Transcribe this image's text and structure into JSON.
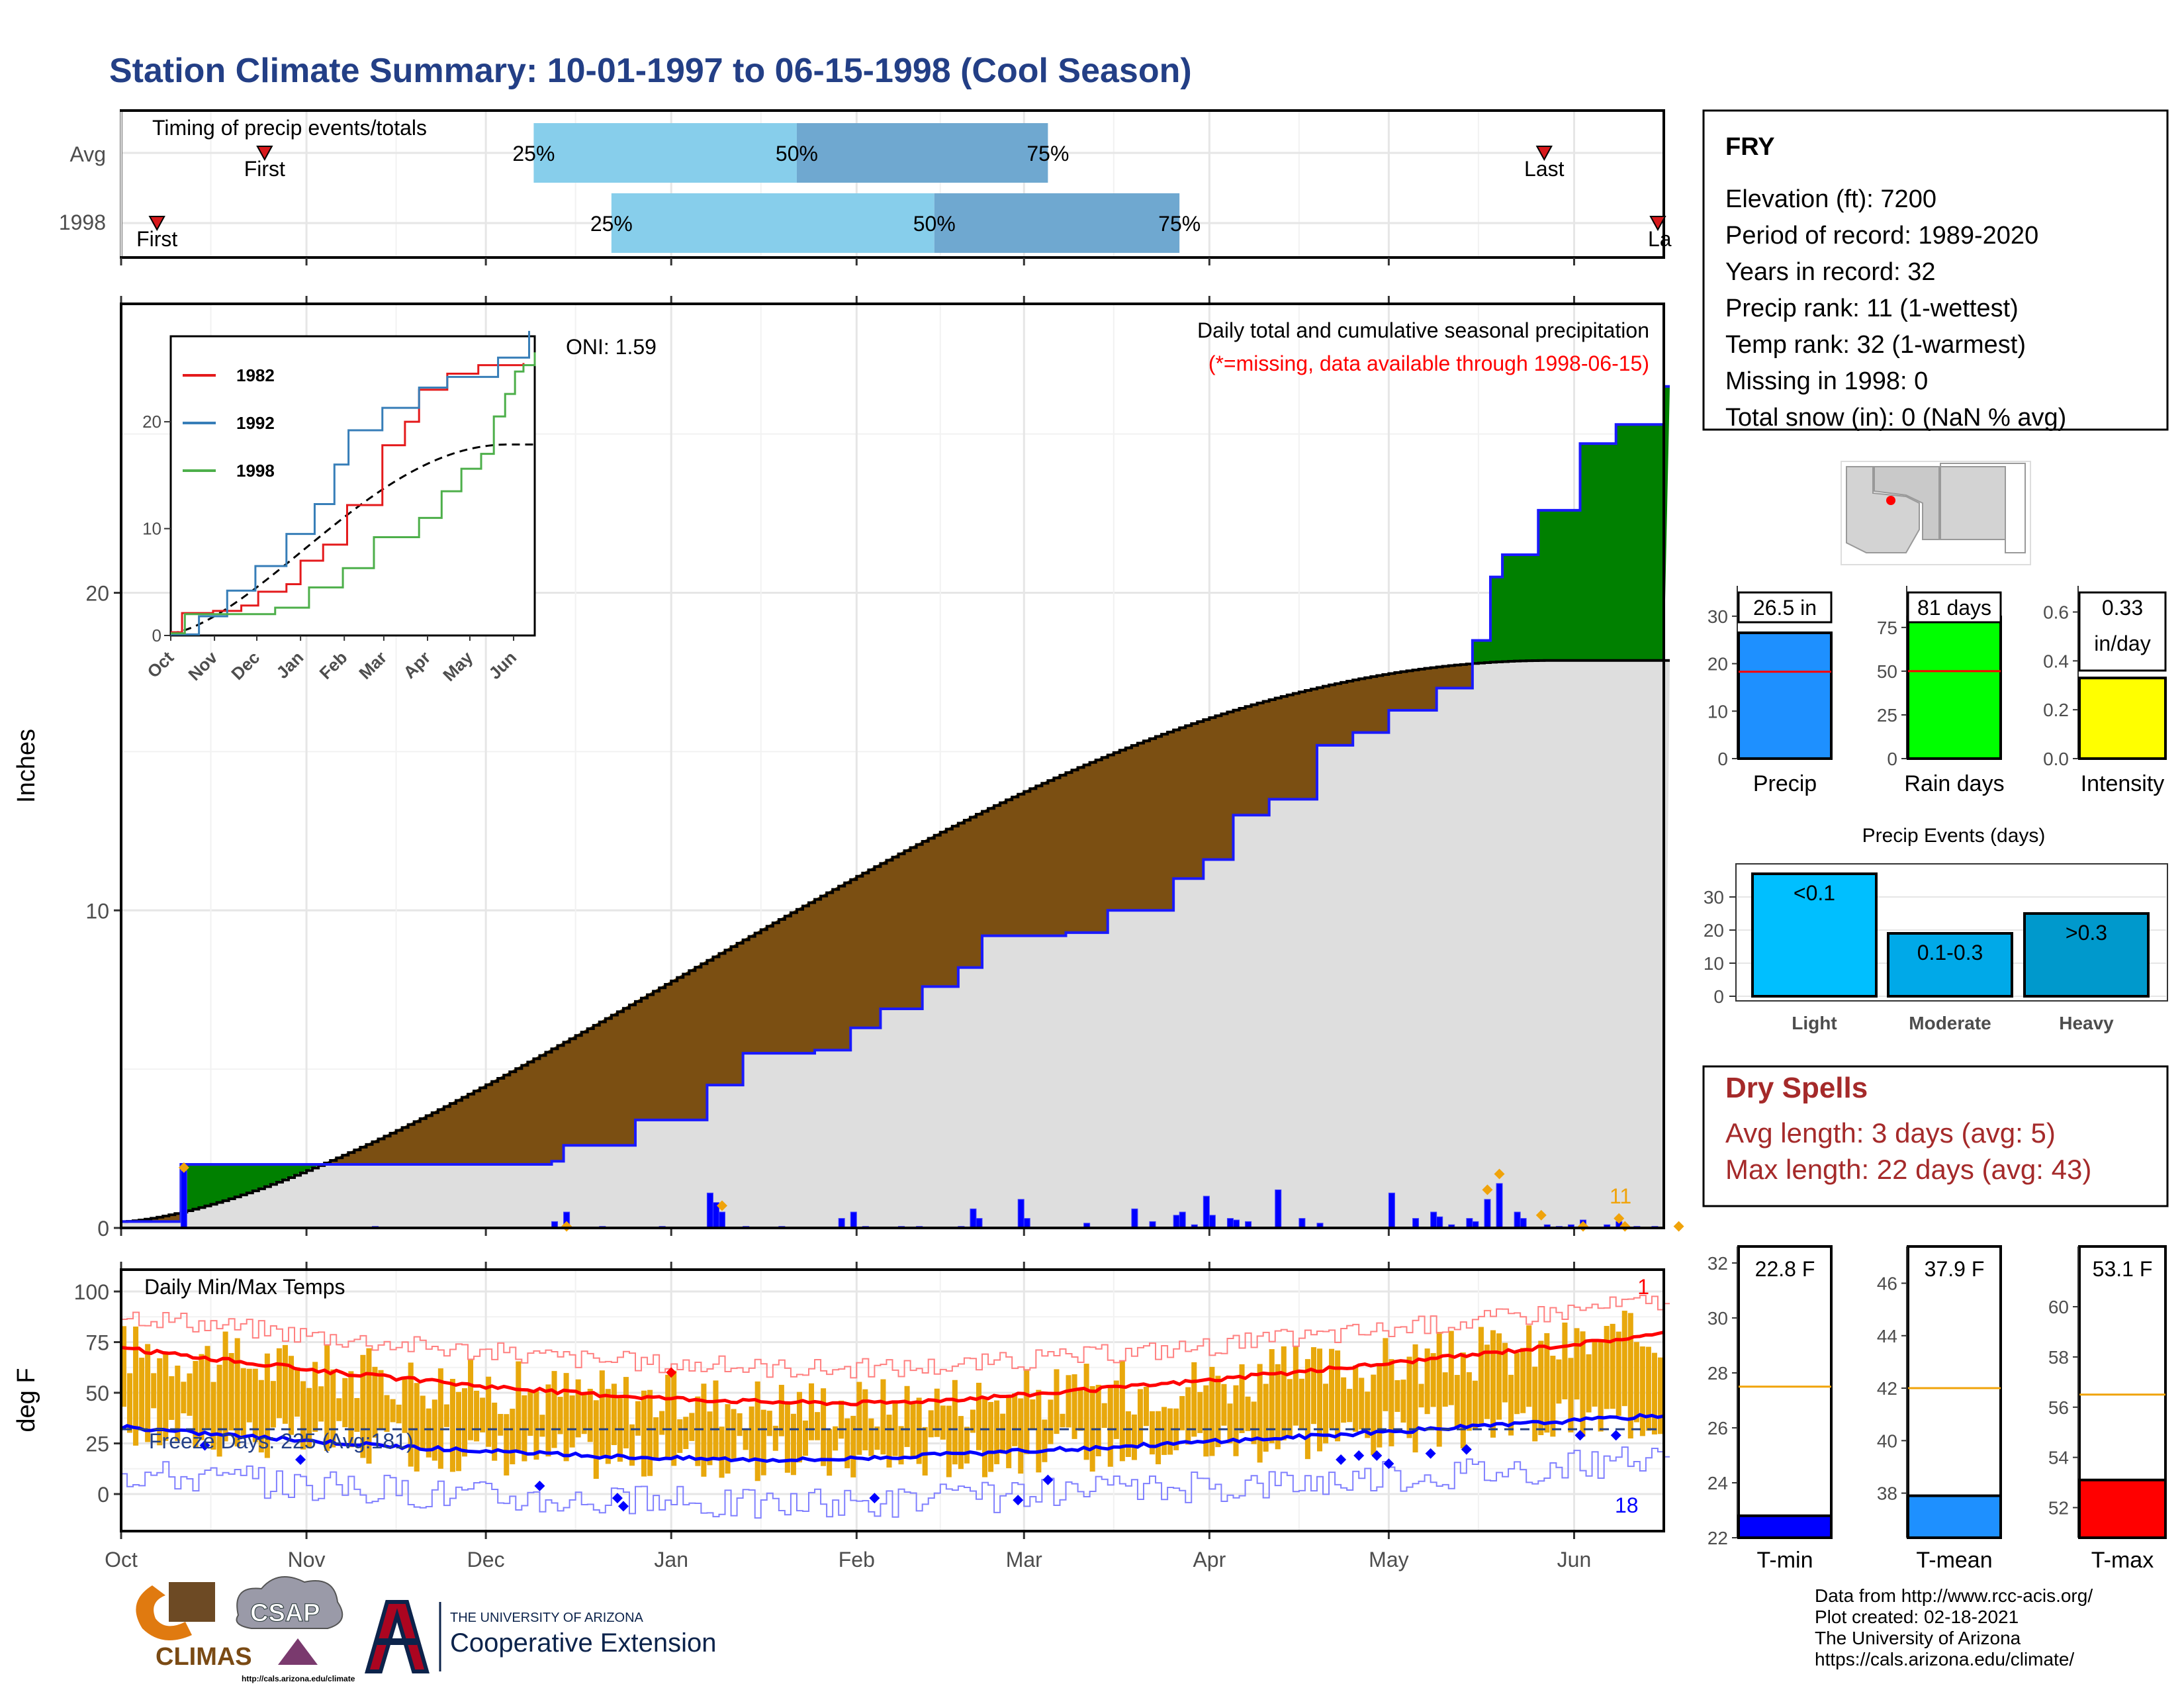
{
  "title": "Station Climate Summary: 10-01-1997 to 06-15-1998 (Cool Season)",
  "colors": {
    "title": "#233f86",
    "green": "#008000",
    "brown": "#7b4f12",
    "bluebar": "#0000ff",
    "blueline": "#1a1aff",
    "orange": "#f0a30a",
    "gold": "#e8a80c",
    "lightblue": "#87ceeb",
    "midblue": "#6fa8d0",
    "red": "#ff0000",
    "grey": "#dedede"
  },
  "months": [
    "Oct",
    "Nov",
    "Dec",
    "Jan",
    "Feb",
    "Mar",
    "Apr",
    "May",
    "Jun"
  ],
  "timing": {
    "title": "Timing of precip events/totals",
    "rows": [
      {
        "label": "Avg",
        "first": "First",
        "last": "Last",
        "first_date": "1997-10-25",
        "last_date": "1998-05-27",
        "q25_label": "25%",
        "q50_label": "50%",
        "q75_label": "75%",
        "q25_date": "1997-12-09",
        "q50_date": "1998-01-22",
        "q75_date": "1998-03-05"
      },
      {
        "label": "1998",
        "first": "First",
        "last": "Last",
        "first_date": "1997-10-07",
        "last_date": "1998-06-15",
        "q25_date": "1997-12-22",
        "q50_date": "1998-02-14",
        "q75_date": "1998-03-27",
        "q25_label": "25%",
        "q50_label": "50%",
        "q75_label": "75%"
      }
    ]
  },
  "main": {
    "ylabel": "Inches",
    "chart_title": "Daily total and cumulative seasonal precipitation",
    "chart_note": "(*=missing, data available through 1998-06-15)",
    "oni": "ONI: 1.59",
    "count_label": "11",
    "yticks": [
      0,
      10,
      20
    ]
  },
  "inset": {
    "yticks": [
      0,
      10,
      20
    ],
    "months": [
      "Oct",
      "Nov",
      "Dec",
      "Jan",
      "Feb",
      "Mar",
      "Apr",
      "May",
      "Jun"
    ],
    "legend": [
      {
        "name": "1982",
        "color": "#e41a1c"
      },
      {
        "name": "1992",
        "color": "#377eb8"
      },
      {
        "name": "1998",
        "color": "#4daf4a"
      }
    ]
  },
  "temps": {
    "title": "Daily Min/Max Temps",
    "ylabel": "deg F",
    "freeze": "Freeze Days: 225 (Avg:181)",
    "top_count": "1",
    "bottom_count": "18",
    "yticks": [
      0,
      25,
      50,
      75,
      100
    ]
  },
  "info": {
    "station": "FRY",
    "lines": [
      "Elevation (ft): 7200",
      "Period of record: 1989-2020",
      "Years in record: 32",
      "Precip rank: 11 (1-wettest)",
      "Temp rank: 32 (1-warmest)",
      "Missing in 1998: 0",
      "Total snow (in): 0 (NaN % avg)"
    ]
  },
  "bars3": [
    {
      "name": "Precip",
      "value": 26.5,
      "avg": 18.3,
      "label": "26.5 in",
      "color": "#1e90ff",
      "ymax": 35,
      "ticks": [
        0,
        10,
        20,
        30
      ]
    },
    {
      "name": "Rain days",
      "value": 81,
      "avg": 50,
      "label": "81 days",
      "color": "#00ff00",
      "ymax": 95,
      "ticks": [
        0,
        25,
        50,
        75
      ]
    },
    {
      "name": "Intensity",
      "value": 0.33,
      "avg": 0.37,
      "label": "0.33",
      "label2": "in/day",
      "color": "#ffff00",
      "ymax": 0.68,
      "ticks": [
        "0.0",
        "0.2",
        "0.4",
        "0.6"
      ]
    }
  ],
  "events": {
    "title": "Precip Events (days)",
    "ticks": [
      0,
      10,
      20,
      30
    ],
    "bars": [
      {
        "name": "Light",
        "label": "<0.1",
        "value": 37,
        "color": "#00bfff"
      },
      {
        "name": "Moderate",
        "label": "0.1-0.3",
        "value": 19,
        "color": "#00a9e8"
      },
      {
        "name": "Heavy",
        "label": ">0.3",
        "value": 25,
        "color": "#0099cc"
      }
    ]
  },
  "dry": {
    "title": "Dry Spells",
    "avg": "Avg length: 3 days (avg: 5)",
    "max": "Max length: 22 days (avg: 43)"
  },
  "tbars": [
    {
      "name": "T-min",
      "value": 22.8,
      "avg": 27.5,
      "label": "22.8 F",
      "color": "#0000ff",
      "ymin": 22,
      "ymax": 32.6,
      "ticks": [
        22,
        24,
        26,
        28,
        30,
        32
      ]
    },
    {
      "name": "T-mean",
      "value": 37.9,
      "avg": 42,
      "label": "37.9 F",
      "color": "#1e90ff",
      "ymin": 36.3,
      "ymax": 47.4,
      "ticks": [
        38,
        40,
        42,
        44,
        46
      ]
    },
    {
      "name": "T-max",
      "value": 53.1,
      "avg": 56.5,
      "label": "53.1 F",
      "color": "#ff0000",
      "ymin": 50.8,
      "ymax": 62.4,
      "ticks": [
        52,
        54,
        56,
        58,
        60
      ]
    }
  ],
  "credits": [
    "Data from http://www.rcc-acis.org/",
    "Plot created: 02-18-2021",
    "The University of Arizona",
    "https://cals.arizona.edu/climate/"
  ],
  "logos": {
    "climas": "CLIMAS",
    "csap": "CSAP",
    "csap_url": "http://cals.arizona.edu/climate",
    "ua1": "THE UNIVERSITY OF ARIZONA",
    "ua2": "Cooperative Extension"
  }
}
